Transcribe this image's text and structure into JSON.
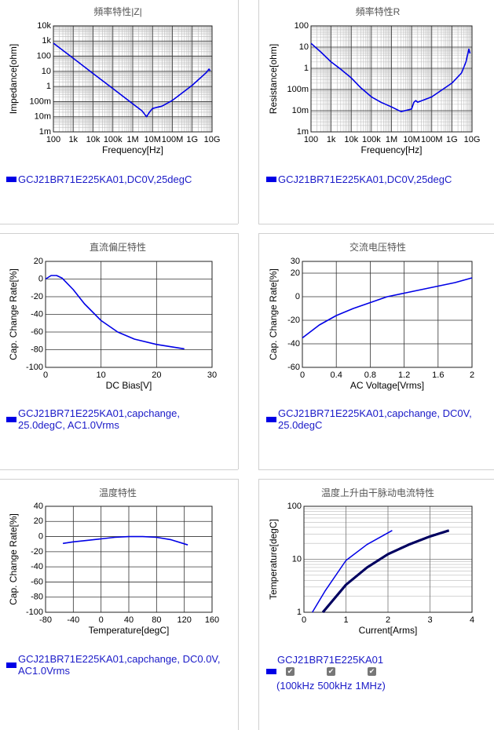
{
  "chart_data": [
    {
      "type": "line",
      "title": "頻率特性|Z|",
      "xlabel": "Frequency[Hz]",
      "ylabel": "Impedance[ohm]",
      "xscale": "log",
      "yscale": "log",
      "grid": true,
      "minor_grid": true,
      "xlim": [
        100,
        10000000000
      ],
      "ylim": [
        0.001,
        10000
      ],
      "xticks": [
        100,
        {
          "value": 1000,
          "label": "1k"
        },
        {
          "value": 10000,
          "label": "10k"
        },
        {
          "value": 100000,
          "label": "100k"
        },
        {
          "value": 1000000,
          "label": "1M"
        },
        {
          "value": 10000000,
          "label": "10M"
        },
        {
          "value": 100000000,
          "label": "100M"
        },
        {
          "value": 1000000000,
          "label": "1G"
        },
        {
          "value": 10000000000,
          "label": "10G"
        }
      ],
      "yticks": [
        {
          "value": 0.001,
          "label": "1m"
        },
        {
          "value": 0.01,
          "label": "10m"
        },
        {
          "value": 0.1,
          "label": "100m"
        },
        1,
        10,
        100,
        {
          "value": 1000,
          "label": "1k"
        },
        {
          "value": 10000,
          "label": "10k"
        }
      ],
      "series": [
        {
          "name": "GCJ21BR71E225KA01,DC0V,25degC",
          "color": "#0000e6",
          "x": [
            100,
            1000,
            10000,
            100000,
            1000000,
            3000000,
            5000000,
            7000000,
            10000000,
            30000000,
            100000000,
            1000000000,
            5000000000,
            7000000000,
            8000000000
          ],
          "values": [
            723,
            72,
            7.2,
            0.72,
            0.072,
            0.024,
            0.01,
            0.02,
            0.035,
            0.05,
            0.12,
            1.2,
            8,
            14,
            11
          ]
        }
      ]
    },
    {
      "type": "line",
      "title": "頻率特性R",
      "xlabel": "Frequency[Hz]",
      "ylabel": "Resistance[ohm]",
      "xscale": "log",
      "yscale": "log",
      "grid": true,
      "minor_grid": true,
      "xlim": [
        100,
        10000000000
      ],
      "ylim": [
        0.001,
        100
      ],
      "xticks": [
        100,
        {
          "value": 1000,
          "label": "1k"
        },
        {
          "value": 10000,
          "label": "10k"
        },
        {
          "value": 100000,
          "label": "100k"
        },
        {
          "value": 1000000,
          "label": "1M"
        },
        {
          "value": 10000000,
          "label": "10M"
        },
        {
          "value": 100000000,
          "label": "100M"
        },
        {
          "value": 1000000000,
          "label": "1G"
        },
        {
          "value": 10000000000,
          "label": "10G"
        }
      ],
      "yticks": [
        {
          "value": 0.001,
          "label": "1m"
        },
        {
          "value": 0.01,
          "label": "10m"
        },
        {
          "value": 0.1,
          "label": "100m"
        },
        1,
        10,
        100
      ],
      "series": [
        {
          "name": "GCJ21BR71E225KA01,DC0V,25degC",
          "color": "#0000e6",
          "x": [
            100,
            300,
            1000,
            3000,
            10000,
            30000,
            100000,
            300000,
            1000000,
            3000000,
            10000000,
            13000000,
            16000000,
            20000000,
            100000000,
            1000000000,
            3000000000,
            5000000000,
            7000000000,
            8000000000
          ],
          "values": [
            15,
            6,
            2,
            0.9,
            0.35,
            0.12,
            0.045,
            0.025,
            0.015,
            0.009,
            0.012,
            0.025,
            0.03,
            0.025,
            0.045,
            0.2,
            0.6,
            2,
            8,
            5
          ]
        }
      ]
    },
    {
      "type": "line",
      "title": "直流偏圧特性",
      "xlabel": "DC Bias[V]",
      "ylabel": "Cap. Change Rate[%]",
      "grid": true,
      "xlim": [
        0,
        30
      ],
      "ylim": [
        -100,
        20
      ],
      "xticks": [
        0,
        10,
        20,
        30
      ],
      "yticks": [
        -100,
        -80,
        -60,
        -40,
        -20,
        0,
        20
      ],
      "series": [
        {
          "name": "GCJ21BR71E225KA01,capchange, 25.0degC, AC1.0Vrms",
          "color": "#0000e6",
          "x": [
            0,
            1,
            2,
            3,
            5,
            7,
            10,
            13,
            16,
            20,
            25
          ],
          "values": [
            0,
            4,
            4,
            1,
            -12,
            -28,
            -47,
            -60,
            -68,
            -74,
            -79
          ]
        }
      ]
    },
    {
      "type": "line",
      "title": "交流电压特性",
      "xlabel": "AC Voltage[Vrms]",
      "ylabel": "Cap. Change Rate[%]",
      "grid": true,
      "xlim": [
        0,
        2
      ],
      "ylim": [
        -60,
        30
      ],
      "xticks": [
        0,
        0.4,
        0.8,
        1.2,
        1.6,
        2
      ],
      "yticks": [
        -60,
        -40,
        -20,
        0,
        20,
        30
      ],
      "series": [
        {
          "name": "GCJ21BR71E225KA01,capchange, DC0V, 25.0degC",
          "color": "#0000e6",
          "x": [
            0,
            0.2,
            0.4,
            0.6,
            0.8,
            1,
            1.2,
            1.4,
            1.6,
            1.8,
            2
          ],
          "values": [
            -35,
            -24,
            -16,
            -10,
            -5,
            0,
            3,
            6,
            9,
            12,
            16
          ]
        }
      ]
    },
    {
      "type": "line",
      "title": "温度特性",
      "xlabel": "Temperature[degC]",
      "ylabel": "Cap. Change Rate[%]",
      "grid": true,
      "xlim": [
        -80,
        160
      ],
      "ylim": [
        -100,
        40
      ],
      "xticks": [
        -80,
        -40,
        0,
        40,
        80,
        120,
        160
      ],
      "yticks": [
        -100,
        -80,
        -60,
        -40,
        -20,
        0,
        20,
        40
      ],
      "series": [
        {
          "name": "GCJ21BR71E225KA01,capchange, DC0.0V, AC1.0Vrms",
          "color": "#0000e6",
          "x": [
            -55,
            -40,
            -20,
            0,
            20,
            40,
            60,
            80,
            100,
            125
          ],
          "values": [
            -9,
            -7,
            -5,
            -3,
            -1,
            0,
            0,
            -1,
            -4,
            -11
          ]
        }
      ]
    },
    {
      "type": "line",
      "title": "温度上升由干脉动电流特性",
      "xlabel": "Current[Arms]",
      "ylabel": "Temperature[degC]",
      "yscale": "log",
      "grid": true,
      "minor_grid": true,
      "xlim": [
        0,
        4
      ],
      "ylim": [
        1,
        100
      ],
      "xticks": [
        0,
        1,
        2,
        3,
        4
      ],
      "yticks": [
        1,
        10,
        100
      ],
      "legend_title": "GCJ21BR71E225KA01",
      "legend_open": "(",
      "legend_close": ")",
      "series": [
        {
          "name": "100kHz",
          "color": "#000060",
          "line_width": 3,
          "x": [
            0.45,
            1,
            1.5,
            2,
            2.5,
            3,
            3.45
          ],
          "values": [
            1,
            3.3,
            7,
            12.5,
            19,
            27,
            35
          ]
        },
        {
          "name": "500kHz",
          "color": "#000060",
          "line_width": 3,
          "x": [
            0.45,
            1,
            1.5,
            2,
            2.5,
            3,
            3.45
          ],
          "values": [
            1,
            3.3,
            7,
            12.5,
            19,
            27,
            35
          ]
        },
        {
          "name": "1MHz",
          "color": "#0000e6",
          "line_width": 1.5,
          "x": [
            0.2,
            0.5,
            1,
            1.5,
            2.1
          ],
          "values": [
            1,
            2.5,
            9.5,
            19,
            35
          ]
        }
      ]
    }
  ]
}
